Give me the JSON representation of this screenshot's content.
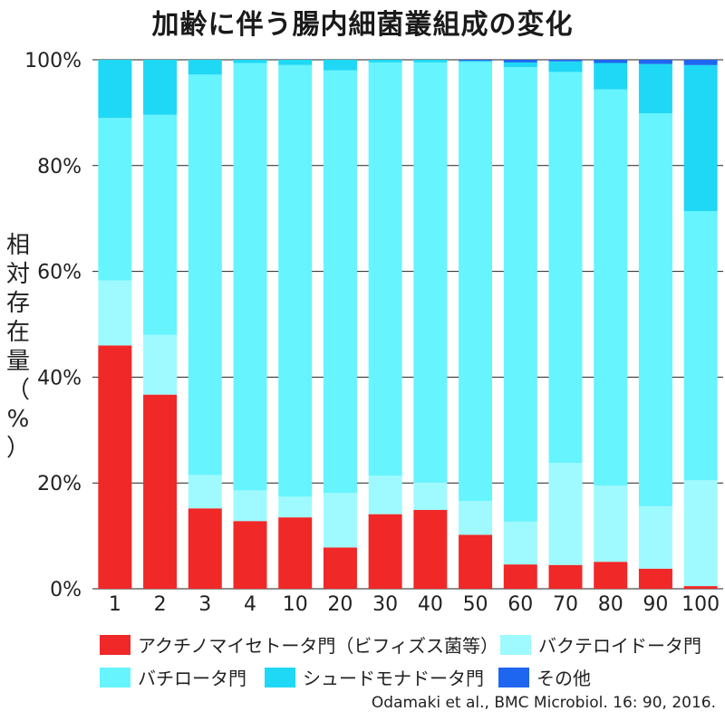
{
  "title": "加齢に伴う腸内細菌叢組成の変化",
  "source": "Odamaki et al., BMC Microbiol. 16: 90, 2016.",
  "colors": {
    "actinobacteria": "#f02828",
    "bacteroidetes": "#9ffaff",
    "firmicutes": "#66f4ff",
    "proteobacteria": "#1fd8f5",
    "other": "#1e66f0",
    "grid": "#222222"
  },
  "legend": [
    {
      "key": "actinobacteria",
      "label": "アクチノマイセトータ門（ビフィズス菌等）"
    },
    {
      "key": "bacteroidetes",
      "label": "バクテロイドータ門"
    },
    {
      "key": "firmicutes",
      "label": "バチロータ門"
    },
    {
      "key": "proteobacteria",
      "label": "シュードモナドータ門"
    },
    {
      "key": "other",
      "label": "その他"
    }
  ],
  "chart_data": {
    "type": "bar",
    "stacked": true,
    "title": "加齢に伴う腸内細菌叢組成の変化",
    "xlabel": "",
    "ylabel": "相対存在量（%）",
    "ylim": [
      0,
      100
    ],
    "yticks": [
      "0%",
      "20%",
      "40%",
      "60%",
      "80%",
      "100%"
    ],
    "categories": [
      "1",
      "2",
      "3",
      "4",
      "10",
      "20",
      "30",
      "40",
      "50",
      "60",
      "70",
      "80",
      "90",
      "100"
    ],
    "series": [
      {
        "name": "アクチノマイセトータ門（ビフィズス菌等）",
        "key": "actinobacteria",
        "values": [
          46,
          36.7,
          15.2,
          12.8,
          13.5,
          7.8,
          14.1,
          14.9,
          10.2,
          4.6,
          4.5,
          5.1,
          3.8,
          0.5
        ]
      },
      {
        "name": "バクテロイドータ門",
        "key": "bacteroidetes",
        "values": [
          12.3,
          11.3,
          6.3,
          5.8,
          3.9,
          10.3,
          7.3,
          5.2,
          6.4,
          8.1,
          19.3,
          14.4,
          11.8,
          20
        ]
      },
      {
        "name": "バチロータ門",
        "key": "firmicutes",
        "values": [
          30.7,
          41.6,
          75.7,
          80.8,
          81.6,
          79.9,
          78.1,
          79.4,
          83,
          85.9,
          73.9,
          74.9,
          74.3,
          50.9
        ]
      },
      {
        "name": "シュードモナドータ門",
        "key": "proteobacteria",
        "values": [
          11,
          10.4,
          2.8,
          0.6,
          1,
          2,
          0.5,
          0.5,
          0.2,
          0.9,
          2,
          5,
          9.3,
          27.6
        ]
      },
      {
        "name": "その他",
        "key": "other",
        "values": [
          0,
          0,
          0,
          0,
          0,
          0,
          0,
          0,
          0.2,
          0.5,
          0.3,
          0.6,
          0.8,
          1
        ]
      }
    ]
  }
}
